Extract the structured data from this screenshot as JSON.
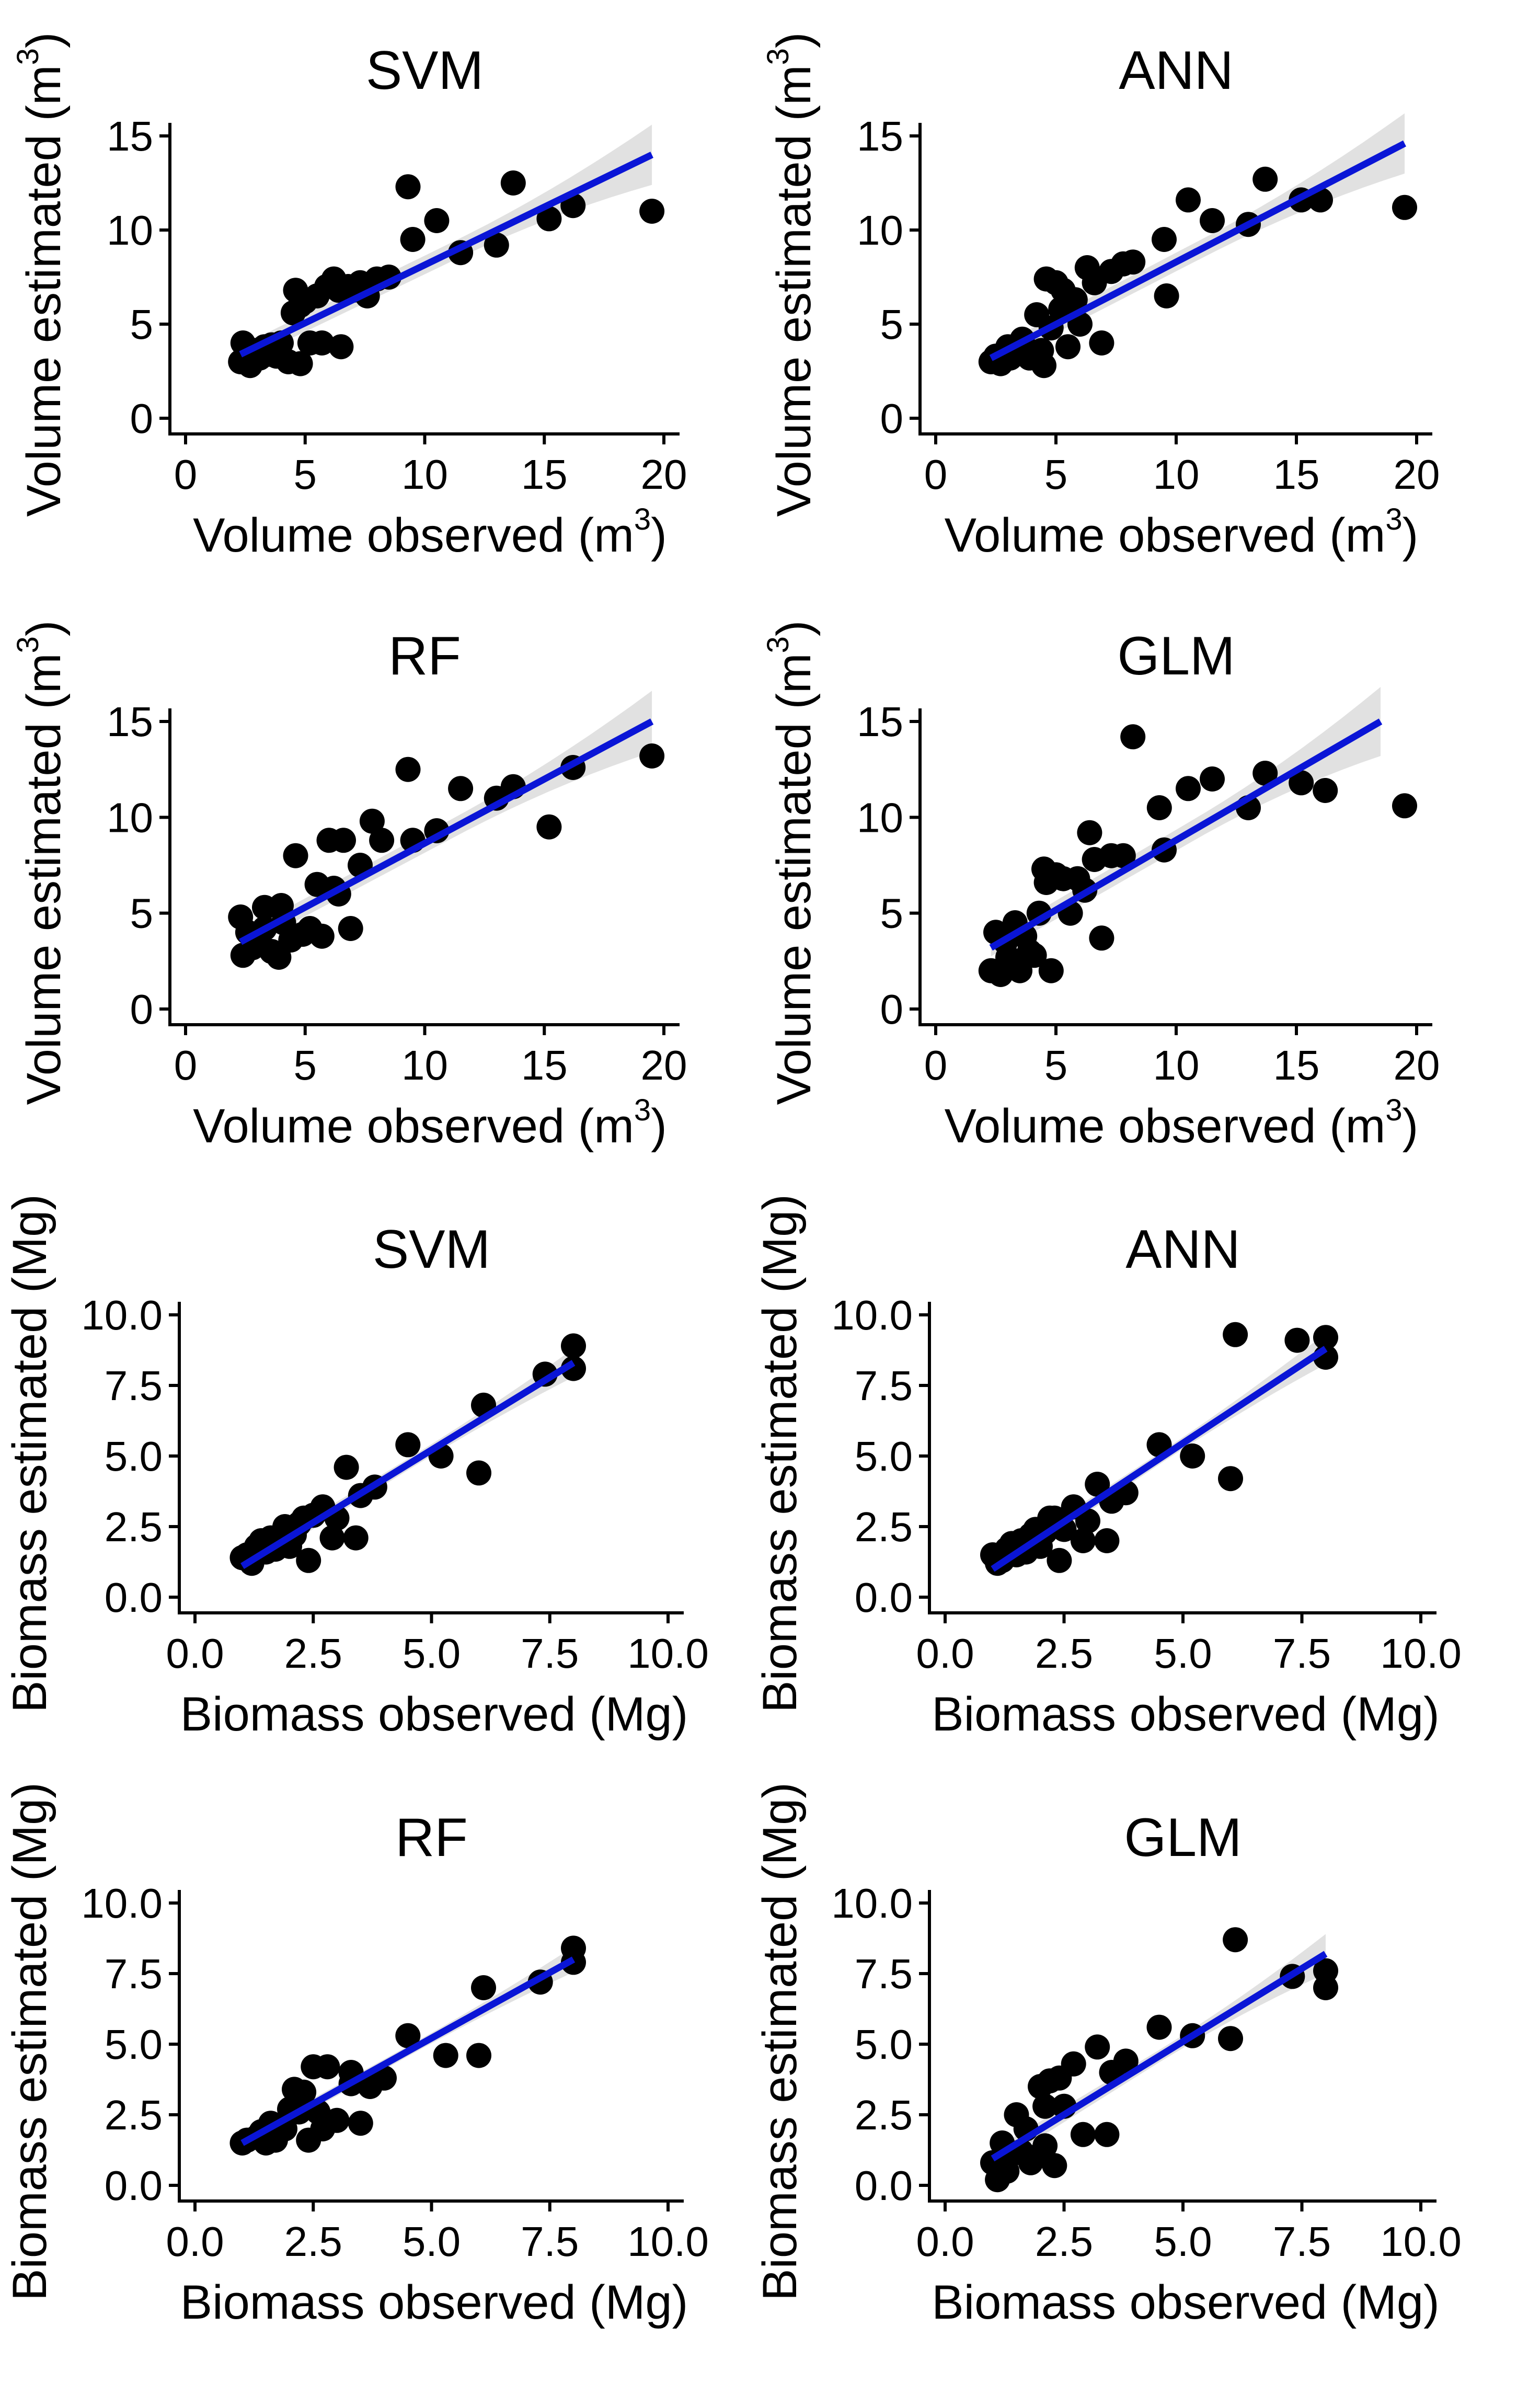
{
  "chart_data": [
    {
      "type": "scatter",
      "title": "SVM",
      "xlabel": "Volume observed (m3)",
      "ylabel": "Volume estimated (m3)",
      "xlabel_text": "Volume observed (m",
      "ylabel_text": "Volume estimated (m",
      "label_sup": "3",
      "xlim": [
        0,
        20
      ],
      "ylim": [
        0,
        15
      ],
      "xticks": [
        0,
        5,
        10,
        15,
        20
      ],
      "yticks": [
        0,
        5,
        10,
        15
      ],
      "xtick_labels": [
        "0",
        "5",
        "10",
        "15",
        "20"
      ],
      "ytick_labels": [
        "0",
        "5",
        "10",
        "15"
      ],
      "fit_line": {
        "x": [
          2.3,
          19.5
        ],
        "y": [
          3.4,
          14.0
        ]
      },
      "confidence_band_halfwidth": [
        0.45,
        0.5,
        1.6
      ],
      "points": {
        "x": [
          2.3,
          2.4,
          2.6,
          2.7,
          2.9,
          3.1,
          3.3,
          3.5,
          3.8,
          4.0,
          4.3,
          4.5,
          4.6,
          4.8,
          5.0,
          5.2,
          5.5,
          5.7,
          5.9,
          6.2,
          6.4,
          6.5,
          6.8,
          7.0,
          7.3,
          7.6,
          8.0,
          8.5,
          9.3,
          9.5,
          10.5,
          11.5,
          13.0,
          13.7,
          15.2,
          16.2,
          19.5,
          4.8,
          2.8,
          3.6
        ],
        "y": [
          3.0,
          4.0,
          3.5,
          2.8,
          3.6,
          3.2,
          3.8,
          3.4,
          3.3,
          4.0,
          3.0,
          5.6,
          6.8,
          2.9,
          6.2,
          4.0,
          6.5,
          4.0,
          7.0,
          7.4,
          6.8,
          3.8,
          7.0,
          6.8,
          7.2,
          6.5,
          7.4,
          7.5,
          12.3,
          9.5,
          10.5,
          8.8,
          9.2,
          12.5,
          10.6,
          11.3,
          11.0,
          6.0,
          3.1,
          3.9
        ]
      }
    },
    {
      "type": "scatter",
      "title": "ANN",
      "xlabel": "Volume observed (m3)",
      "ylabel": "Volume estimated (m3)",
      "xlabel_text": "Volume observed (m",
      "ylabel_text": "Volume estimated (m",
      "label_sup": "3",
      "xlim": [
        0,
        20
      ],
      "ylim": [
        0,
        15
      ],
      "xticks": [
        0,
        5,
        10,
        15,
        20
      ],
      "yticks": [
        0,
        5,
        10,
        15
      ],
      "xtick_labels": [
        "0",
        "5",
        "10",
        "15",
        "20"
      ],
      "ytick_labels": [
        "0",
        "5",
        "10",
        "15"
      ],
      "fit_line": {
        "x": [
          2.3,
          19.5
        ],
        "y": [
          3.2,
          14.6
        ]
      },
      "confidence_band_halfwidth": [
        0.45,
        0.5,
        1.6
      ],
      "points": {
        "x": [
          2.3,
          2.5,
          2.7,
          2.9,
          3.1,
          3.4,
          3.6,
          3.9,
          4.2,
          4.5,
          4.6,
          4.8,
          5.0,
          5.3,
          5.5,
          5.8,
          6.0,
          6.3,
          6.6,
          6.9,
          7.3,
          7.8,
          8.2,
          9.5,
          9.6,
          10.5,
          11.5,
          13.0,
          13.7,
          15.2,
          16.0,
          19.5,
          3.0,
          5.2,
          4.4
        ],
        "y": [
          3.0,
          3.3,
          2.9,
          3.5,
          3.2,
          3.8,
          4.2,
          3.2,
          5.5,
          2.8,
          7.4,
          4.8,
          7.2,
          6.8,
          3.8,
          6.3,
          5.0,
          8.0,
          7.2,
          4.0,
          7.8,
          8.2,
          8.3,
          9.5,
          6.5,
          11.6,
          10.5,
          10.3,
          12.7,
          11.6,
          11.6,
          11.2,
          3.8,
          5.8,
          3.6
        ]
      }
    },
    {
      "type": "scatter",
      "title": "RF",
      "xlabel": "Volume observed (m3)",
      "ylabel": "Volume estimated (m3)",
      "xlabel_text": "Volume observed (m",
      "ylabel_text": "Volume estimated (m",
      "label_sup": "3",
      "xlim": [
        0,
        20
      ],
      "ylim": [
        0,
        15
      ],
      "xticks": [
        0,
        5,
        10,
        15,
        20
      ],
      "yticks": [
        0,
        5,
        10,
        15
      ],
      "xtick_labels": [
        "0",
        "5",
        "10",
        "15",
        "20"
      ],
      "ytick_labels": [
        "0",
        "5",
        "10",
        "15"
      ],
      "fit_line": {
        "x": [
          2.3,
          19.5
        ],
        "y": [
          3.5,
          15.0
        ]
      },
      "confidence_band_halfwidth": [
        0.45,
        0.5,
        1.6
      ],
      "points": {
        "x": [
          2.3,
          2.4,
          2.6,
          2.8,
          3.0,
          3.3,
          3.6,
          3.9,
          4.1,
          4.4,
          4.6,
          4.9,
          5.2,
          5.5,
          5.7,
          6.0,
          6.2,
          6.4,
          6.6,
          6.9,
          7.3,
          7.8,
          8.2,
          9.3,
          9.5,
          10.5,
          11.5,
          13.0,
          13.7,
          15.2,
          16.2,
          19.5,
          3.3,
          4.0
        ],
        "y": [
          4.8,
          2.8,
          4.0,
          3.2,
          3.5,
          5.3,
          3.0,
          2.7,
          4.5,
          3.6,
          8.0,
          3.9,
          4.2,
          6.5,
          3.8,
          8.8,
          6.3,
          6.0,
          8.8,
          4.2,
          7.5,
          9.8,
          8.8,
          12.5,
          8.8,
          9.3,
          11.5,
          11.0,
          11.6,
          9.5,
          12.6,
          13.2,
          4.2,
          5.4
        ]
      }
    },
    {
      "type": "scatter",
      "title": "GLM",
      "xlabel": "Volume observed (m3)",
      "ylabel": "Volume estimated (m3)",
      "xlabel_text": "Volume observed (m",
      "ylabel_text": "Volume estimated (m",
      "label_sup": "3",
      "xlim": [
        0,
        20
      ],
      "ylim": [
        0,
        15
      ],
      "xticks": [
        0,
        5,
        10,
        15,
        20
      ],
      "yticks": [
        0,
        5,
        10,
        15
      ],
      "xtick_labels": [
        "0",
        "5",
        "10",
        "15",
        "20"
      ],
      "ytick_labels": [
        "0",
        "5",
        "10",
        "15"
      ],
      "fit_line": {
        "x": [
          2.3,
          18.5
        ],
        "y": [
          3.2,
          15.0
        ]
      },
      "confidence_band_halfwidth": [
        0.45,
        0.55,
        1.8
      ],
      "points": {
        "x": [
          2.3,
          2.5,
          2.7,
          2.9,
          3.1,
          3.3,
          3.5,
          3.7,
          3.9,
          4.1,
          4.3,
          4.5,
          4.8,
          5.0,
          5.3,
          5.6,
          5.9,
          6.2,
          6.4,
          6.6,
          6.9,
          7.3,
          7.8,
          8.2,
          9.3,
          9.5,
          10.5,
          11.5,
          13.0,
          13.7,
          15.2,
          16.2,
          19.5,
          3.0,
          4.6
        ],
        "y": [
          2.0,
          4.0,
          1.8,
          3.5,
          2.5,
          4.5,
          2.0,
          3.8,
          3.0,
          2.8,
          5.0,
          7.3,
          2.0,
          7.0,
          6.8,
          5.0,
          6.8,
          6.2,
          9.2,
          7.8,
          3.7,
          8.0,
          8.0,
          14.2,
          10.5,
          8.3,
          11.5,
          12.0,
          10.5,
          12.3,
          11.8,
          11.4,
          10.6,
          2.7,
          6.6
        ]
      }
    },
    {
      "type": "scatter",
      "title": "SVM",
      "xlabel": "Biomass observed (Mg)",
      "ylabel": "Biomass estimated (Mg)",
      "xlabel_text": "Biomass observed (Mg)",
      "ylabel_text": "Biomass estimated (Mg)",
      "label_sup": "",
      "xlim": [
        0,
        10
      ],
      "ylim": [
        0,
        10
      ],
      "xticks": [
        0,
        2.5,
        5,
        7.5,
        10
      ],
      "yticks": [
        0,
        2.5,
        5,
        7.5,
        10
      ],
      "xtick_labels": [
        "0.0",
        "2.5",
        "5.0",
        "7.5",
        "10.0"
      ],
      "ytick_labels": [
        "0.0",
        "2.5",
        "5.0",
        "7.5",
        "10.0"
      ],
      "fit_line": {
        "x": [
          1.0,
          8.0
        ],
        "y": [
          1.1,
          8.3
        ]
      },
      "confidence_band_halfwidth": [
        0.25,
        0.2,
        0.5
      ],
      "points": {
        "x": [
          1.0,
          1.1,
          1.2,
          1.4,
          1.5,
          1.6,
          1.7,
          1.8,
          1.9,
          2.0,
          2.1,
          2.2,
          2.3,
          2.4,
          2.5,
          2.7,
          2.9,
          3.2,
          3.4,
          3.5,
          3.8,
          4.5,
          5.2,
          6.0,
          6.1,
          7.4,
          8.0,
          8.0,
          3.0,
          1.3
        ],
        "y": [
          1.4,
          1.5,
          1.2,
          2.0,
          1.6,
          2.1,
          1.7,
          2.0,
          2.5,
          1.8,
          2.2,
          2.6,
          2.8,
          1.3,
          2.9,
          3.2,
          2.1,
          4.6,
          2.1,
          3.6,
          3.9,
          5.4,
          5.0,
          4.4,
          6.8,
          7.9,
          8.9,
          8.1,
          2.8,
          1.8
        ]
      }
    },
    {
      "type": "scatter",
      "title": "ANN",
      "xlabel": "Biomass observed (Mg)",
      "ylabel": "Biomass estimated (Mg)",
      "xlabel_text": "Biomass observed (Mg)",
      "ylabel_text": "Biomass estimated (Mg)",
      "label_sup": "",
      "xlim": [
        0,
        10
      ],
      "ylim": [
        0,
        10
      ],
      "xticks": [
        0,
        2.5,
        5,
        7.5,
        10
      ],
      "yticks": [
        0,
        2.5,
        5,
        7.5,
        10
      ],
      "xtick_labels": [
        "0.0",
        "2.5",
        "5.0",
        "7.5",
        "10.0"
      ],
      "ytick_labels": [
        "0.0",
        "2.5",
        "5.0",
        "7.5",
        "10.0"
      ],
      "fit_line": {
        "x": [
          1.0,
          8.0
        ],
        "y": [
          1.0,
          8.8
        ]
      },
      "confidence_band_halfwidth": [
        0.25,
        0.2,
        0.55
      ],
      "points": {
        "x": [
          1.0,
          1.1,
          1.2,
          1.4,
          1.5,
          1.6,
          1.7,
          1.8,
          1.9,
          2.0,
          2.1,
          2.2,
          2.3,
          2.4,
          2.5,
          2.7,
          2.9,
          3.2,
          3.4,
          3.5,
          3.8,
          4.5,
          5.2,
          6.0,
          6.1,
          7.4,
          8.0,
          8.0,
          3.0,
          1.3
        ],
        "y": [
          1.5,
          1.2,
          1.3,
          1.9,
          1.5,
          2.0,
          1.6,
          2.2,
          2.4,
          1.8,
          2.3,
          2.8,
          2.8,
          1.3,
          2.4,
          3.2,
          2.0,
          4.0,
          2.0,
          3.4,
          3.7,
          5.4,
          5.0,
          4.2,
          9.3,
          9.1,
          9.2,
          8.5,
          2.7,
          1.7
        ]
      }
    },
    {
      "type": "scatter",
      "title": "RF",
      "xlabel": "Biomass observed (Mg)",
      "ylabel": "Biomass estimated (Mg)",
      "xlabel_text": "Biomass observed (Mg)",
      "ylabel_text": "Biomass estimated (Mg)",
      "label_sup": "",
      "xlim": [
        0,
        10
      ],
      "ylim": [
        0,
        10
      ],
      "xticks": [
        0,
        2.5,
        5,
        7.5,
        10
      ],
      "yticks": [
        0,
        2.5,
        5,
        7.5,
        10
      ],
      "xtick_labels": [
        "0.0",
        "2.5",
        "5.0",
        "7.5",
        "10.0"
      ],
      "ytick_labels": [
        "0.0",
        "2.5",
        "5.0",
        "7.5",
        "10.0"
      ],
      "fit_line": {
        "x": [
          1.0,
          8.0
        ],
        "y": [
          1.5,
          8.0
        ]
      },
      "confidence_band_halfwidth": [
        0.2,
        0.18,
        0.45
      ],
      "points": {
        "x": [
          1.0,
          1.1,
          1.3,
          1.5,
          1.6,
          1.7,
          1.9,
          2.0,
          2.1,
          2.2,
          2.3,
          2.4,
          2.5,
          2.8,
          3.0,
          3.3,
          3.5,
          3.7,
          4.0,
          4.5,
          5.3,
          6.0,
          6.1,
          7.3,
          8.0,
          8.0,
          2.7,
          1.4,
          2.6,
          3.3
        ],
        "y": [
          1.5,
          1.6,
          1.7,
          1.5,
          2.2,
          1.6,
          2.0,
          2.7,
          3.4,
          2.6,
          3.3,
          1.6,
          4.2,
          4.2,
          2.3,
          4.0,
          2.2,
          3.5,
          3.8,
          5.3,
          4.6,
          4.6,
          7.0,
          7.2,
          8.4,
          7.9,
          2.0,
          1.9,
          2.6,
          3.6
        ]
      }
    },
    {
      "type": "scatter",
      "title": "GLM",
      "xlabel": "Biomass observed (Mg)",
      "ylabel": "Biomass estimated (Mg)",
      "xlabel_text": "Biomass observed (Mg)",
      "ylabel_text": "Biomass estimated (Mg)",
      "label_sup": "",
      "xlim": [
        0,
        10
      ],
      "ylim": [
        0,
        10
      ],
      "xticks": [
        0,
        2.5,
        5,
        7.5,
        10
      ],
      "yticks": [
        0,
        2.5,
        5,
        7.5,
        10
      ],
      "xtick_labels": [
        "0.0",
        "2.5",
        "5.0",
        "7.5",
        "10.0"
      ],
      "ytick_labels": [
        "0.0",
        "2.5",
        "5.0",
        "7.5",
        "10.0"
      ],
      "fit_line": {
        "x": [
          1.0,
          8.0
        ],
        "y": [
          0.95,
          8.2
        ]
      },
      "confidence_band_halfwidth": [
        0.3,
        0.22,
        0.7
      ],
      "points": {
        "x": [
          1.0,
          1.1,
          1.2,
          1.3,
          1.5,
          1.6,
          1.7,
          1.8,
          1.9,
          2.0,
          2.1,
          2.2,
          2.3,
          2.4,
          2.5,
          2.7,
          2.9,
          3.2,
          3.4,
          3.5,
          3.8,
          4.5,
          5.2,
          6.0,
          6.1,
          7.3,
          8.0,
          8.0,
          2.1,
          1.4
        ],
        "y": [
          0.8,
          0.2,
          1.5,
          0.5,
          2.5,
          1.2,
          2.0,
          0.8,
          1.0,
          3.5,
          2.8,
          3.7,
          0.7,
          3.8,
          2.8,
          4.3,
          1.8,
          4.9,
          1.8,
          4.0,
          4.4,
          5.6,
          5.3,
          5.2,
          8.7,
          7.4,
          7.6,
          7.0,
          1.4,
          1.1
        ]
      }
    }
  ]
}
